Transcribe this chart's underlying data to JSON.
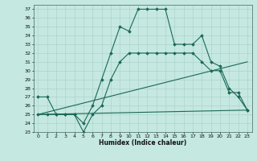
{
  "xlabel": "Humidex (Indice chaleur)",
  "bg_color": "#c5e8e0",
  "line_color": "#1a6858",
  "xlim": [
    -0.5,
    23.5
  ],
  "ylim": [
    23,
    37.5
  ],
  "yticks": [
    23,
    24,
    25,
    26,
    27,
    28,
    29,
    30,
    31,
    32,
    33,
    34,
    35,
    36,
    37
  ],
  "xticks": [
    0,
    1,
    2,
    3,
    4,
    5,
    6,
    7,
    8,
    9,
    10,
    11,
    12,
    13,
    14,
    15,
    16,
    17,
    18,
    19,
    20,
    21,
    22,
    23
  ],
  "lines": [
    {
      "x": [
        0,
        1,
        2,
        3,
        4,
        5,
        6,
        7,
        8,
        9,
        10,
        11,
        12,
        13,
        14,
        15,
        16,
        17,
        18,
        19,
        20,
        21,
        22,
        23
      ],
      "y": [
        27,
        27,
        25,
        25,
        25,
        24,
        26,
        29,
        32,
        35,
        34.5,
        37,
        37,
        37,
        37,
        33,
        33,
        33,
        34,
        31,
        30.5,
        28,
        27,
        25.5
      ],
      "markers": true
    },
    {
      "x": [
        0,
        1,
        2,
        3,
        4,
        5,
        6,
        7,
        8,
        9,
        10,
        11,
        12,
        13,
        14,
        15,
        16,
        17,
        18,
        19,
        20,
        21,
        22,
        23
      ],
      "y": [
        25,
        25,
        25,
        25,
        25,
        23,
        25,
        26,
        29,
        31,
        32,
        32,
        32,
        32,
        32,
        32,
        32,
        32,
        31,
        30,
        30,
        27.5,
        27.5,
        25.5
      ],
      "markers": true
    },
    {
      "x": [
        0,
        23
      ],
      "y": [
        25,
        31
      ],
      "markers": false
    },
    {
      "x": [
        0,
        23
      ],
      "y": [
        25,
        25.5
      ],
      "markers": false
    }
  ]
}
